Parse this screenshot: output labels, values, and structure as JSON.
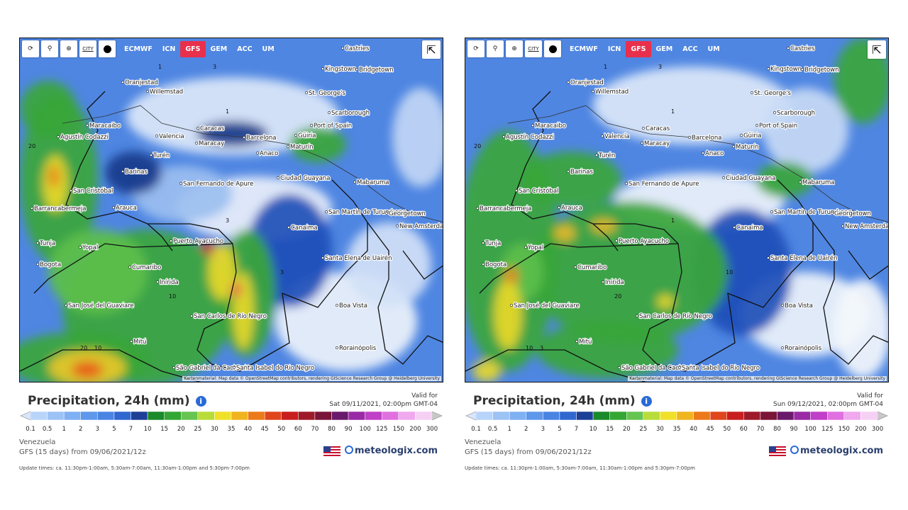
{
  "shared": {
    "title": "Precipitation, 24h (mm)",
    "info_icon": "i",
    "valid_label": "Valid for",
    "scale": [
      0.1,
      0.5,
      1,
      2,
      3,
      5,
      7,
      10,
      15,
      20,
      25,
      30,
      35,
      40,
      45,
      50,
      60,
      70,
      80,
      90,
      100,
      125,
      150,
      200,
      300
    ],
    "region": "Venezuela",
    "model_run": "GFS (15 days) from 09/06/2021/12z",
    "brand": "meteologix.com",
    "update_times": "Update times: ca. 11:30pm-1:00am, 5:30am-7:00am, 11:30am-1:00pm and 5:30pm-7:00pm",
    "city_button": "CITY",
    "models": [
      "ECMWF",
      "ICN",
      "GFS",
      "GEM",
      "ACC",
      "UM"
    ],
    "attribution": "Kartenmaterial: Map data © OpenStreetMap contributors, rendering GIScience Research Group @ Heidelberg University",
    "places": [
      "Castries",
      "Kingstown",
      "Bridgetown",
      "St. George's",
      "Oranjestad",
      "Willemstad",
      "Scarborough",
      "Port of Spain",
      "Maracaibo",
      "Caracas",
      "Valencia",
      "Maracay",
      "Barcelona",
      "Güiria",
      "Maturín",
      "Agustín Codazzi",
      "Turén",
      "Barinas",
      "Anaco",
      "Ciudad Guayana",
      "San Fernando de Apure",
      "Mabaruma",
      "San Cristóbal",
      "Barrancabermeja",
      "Arauca",
      "San Martín de Turumbang",
      "Georgetown",
      "New Amsterdam",
      "Canaima",
      "Tunja",
      "Yopal",
      "Puerto Ayacucho",
      "Bogota",
      "Cumaribo",
      "Santa Elena de Uairén",
      "Inírida",
      "San José del Guaviare",
      "Boa Vista",
      "San Carlos de Río Negro",
      "Mitú",
      "Rorainópolis",
      "São Gabriel da Cachoeira",
      "Santa Isabel do Rio Negro"
    ]
  },
  "panels": [
    {
      "valid_time": "Sat 09/11/2021, 02:00pm GMT-04",
      "active_model": 2,
      "contour_labels": [
        1,
        3,
        1,
        20,
        3,
        10,
        20,
        10,
        3
      ]
    },
    {
      "valid_time": "Sun 09/12/2021, 02:00pm GMT-04",
      "active_model": 2,
      "contour_labels": [
        1,
        3,
        1,
        20,
        10,
        20,
        10,
        3,
        1
      ]
    }
  ]
}
